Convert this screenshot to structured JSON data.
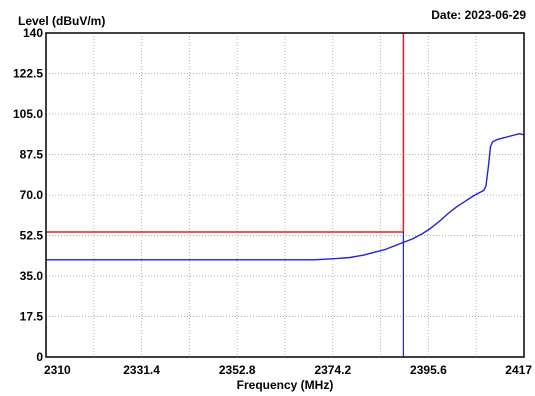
{
  "chart_data": {
    "type": "line",
    "title": "",
    "ylabel": "Level (dBuV/m)",
    "xlabel": "Frequency (MHz)",
    "date_label": "Date: 2023-06-29",
    "xlim": [
      2310,
      2417
    ],
    "ylim": [
      0,
      140
    ],
    "x_ticks": [
      "2310",
      "2331.4",
      "2352.8",
      "2374.2",
      "2395.6",
      "2417"
    ],
    "y_ticks": [
      "0",
      "17.5",
      "35.0",
      "52.5",
      "70.0",
      "87.5",
      "105.0",
      "122.5",
      "140"
    ],
    "grid": true,
    "limit_line": {
      "y": 54,
      "x_end": 2390,
      "color": "#e02020"
    },
    "marker_line": {
      "x": 2390,
      "color": "#2020e0"
    },
    "series": [
      {
        "color": "#2020e0",
        "x": [
          2310,
          2320,
          2330,
          2340,
          2350,
          2360,
          2370,
          2375,
          2378,
          2381,
          2384,
          2386,
          2388,
          2390,
          2392,
          2394,
          2396,
          2398,
          2400,
          2402,
          2404,
          2406,
          2407,
          2408,
          2408.5,
          2409,
          2409.5,
          2410,
          2411,
          2412,
          2414,
          2416,
          2417
        ],
        "y": [
          42,
          42,
          42,
          42,
          42,
          42,
          42,
          42.5,
          43,
          44,
          45.5,
          46.5,
          48,
          49.5,
          51,
          53,
          55.5,
          58.5,
          62,
          65,
          67.5,
          70,
          71,
          72,
          74,
          82,
          91,
          93,
          94,
          94.5,
          95.5,
          96.5,
          96
        ]
      }
    ]
  }
}
